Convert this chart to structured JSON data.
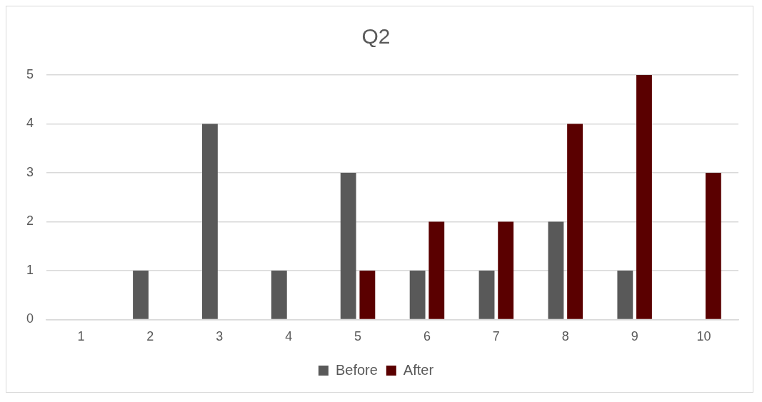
{
  "chart_data": {
    "type": "bar",
    "title": "Q2",
    "categories": [
      "1",
      "2",
      "3",
      "4",
      "5",
      "6",
      "7",
      "8",
      "9",
      "10"
    ],
    "series": [
      {
        "name": "Before",
        "color": "#595959",
        "values": [
          0,
          1,
          4,
          1,
          3,
          1,
          1,
          2,
          1,
          0
        ]
      },
      {
        "name": "After",
        "color": "#5a0000",
        "values": [
          0,
          0,
          0,
          0,
          1,
          2,
          2,
          4,
          5,
          3
        ]
      }
    ],
    "ylim": [
      0,
      5
    ],
    "yticks": [
      0,
      1,
      2,
      3,
      4,
      5
    ],
    "grid": "y",
    "legend": "bottom"
  }
}
